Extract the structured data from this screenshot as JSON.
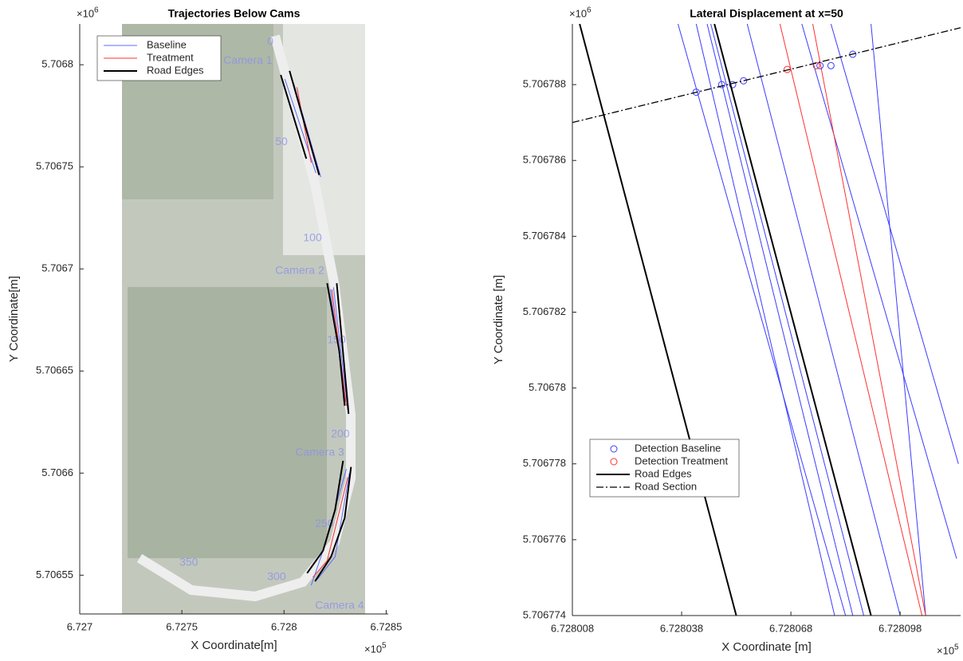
{
  "chart_data": [
    {
      "type": "line",
      "title": "Trajectories Below Cams",
      "x_label": "X Coordinate[m]",
      "y_label": "Y Coordinate[m]",
      "x_multiplier": "×10",
      "x_exponent": "5",
      "y_multiplier": "×10",
      "y_exponent": "6",
      "xlim": [
        6.727,
        6.72851
      ],
      "ylim": [
        5.706531,
        5.70682
      ],
      "xticks": [
        6.727,
        6.7275,
        6.728,
        6.7285
      ],
      "yticks": [
        5.70655,
        5.7066,
        5.70665,
        5.7067,
        5.70675,
        5.7068
      ],
      "legend": "upper left",
      "series": [
        {
          "name": "Baseline",
          "color": "#5a6cff",
          "linewidth": 1,
          "lines": [
            {
              "x": [
                6.728004,
                6.728156,
                null,
                6.728227,
                6.728301,
                null,
                6.728305,
                6.728191,
                6.728133
              ],
              "y": [
                5.706793,
                5.706747,
                null,
                5.70669,
                5.706635,
                null,
                5.706602,
                5.706562,
                5.706545
              ]
            },
            {
              "x": [
                6.728047,
                6.72818,
                null,
                6.728242,
                6.728312,
                null,
                6.72832,
                6.72825,
                6.728164
              ],
              "y": [
                5.706791,
                5.706745,
                null,
                5.706691,
                5.706631,
                null,
                5.7066,
                5.706559,
                5.706548
              ]
            }
          ]
        },
        {
          "name": "Treatment",
          "color": "#ff3030",
          "linewidth": 1,
          "lines": [
            {
              "x": [
                6.728063,
                6.728133,
                null,
                6.728234,
                6.728305,
                null,
                6.728312,
                6.728211,
                6.728141
              ],
              "y": [
                5.706789,
                5.706752,
                null,
                5.70669,
                5.706633,
                null,
                5.706598,
                5.706557,
                5.706549
              ]
            }
          ]
        },
        {
          "name": "Road Edges",
          "color": "#000000",
          "linewidth": 2,
          "lines": [
            {
              "x": [
                6.727984,
                6.728109,
                null,
                6.728211,
                6.72827,
                6.728297,
                null,
                6.728289,
                6.72825,
                6.728191,
                6.728113
              ],
              "y": [
                5.706795,
                5.706754,
                null,
                5.706693,
                5.70666,
                5.706633,
                null,
                5.706606,
                5.706582,
                5.706562,
                5.706551
              ]
            },
            {
              "x": [
                6.728027,
                6.728172,
                null,
                6.728258,
                6.728316,
                null,
                6.728328,
                6.728297,
                6.72823,
                6.728152
              ],
              "y": [
                5.706797,
                5.706746,
                null,
                5.706693,
                5.706629,
                null,
                5.706603,
                5.706578,
                5.706559,
                5.706547
              ]
            }
          ]
        }
      ],
      "annotations": [
        {
          "text": "Camera 1",
          "x": 6.727703,
          "y": 5.706802
        },
        {
          "text": "0",
          "x": 6.727918,
          "y": 5.706811
        },
        {
          "text": "50",
          "x": 6.727957,
          "y": 5.706762
        },
        {
          "text": "100",
          "x": 6.728094,
          "y": 5.706715
        },
        {
          "text": "Camera 2",
          "x": 6.727957,
          "y": 5.706699
        },
        {
          "text": "150",
          "x": 6.728211,
          "y": 5.706665
        },
        {
          "text": "200",
          "x": 6.72823,
          "y": 5.706619
        },
        {
          "text": "Camera 3",
          "x": 6.728055,
          "y": 5.70661
        },
        {
          "text": "250",
          "x": 6.728152,
          "y": 5.706575
        },
        {
          "text": "Camera 4",
          "x": 6.728152,
          "y": 5.706535
        },
        {
          "text": "300",
          "x": 6.727918,
          "y": 5.706549
        },
        {
          "text": "350",
          "x": 6.727488,
          "y": 5.706556
        }
      ]
    },
    {
      "type": "line",
      "title": "Lateral Displacement at x=50",
      "x_label": "X Coordinate [m]",
      "y_label": "Y Coordinate [m]",
      "x_multiplier": "×10",
      "x_exponent": "5",
      "y_multiplier": "×10",
      "y_exponent": "6",
      "xlim": [
        6.728008,
        6.7281146
      ],
      "ylim": [
        5.706774,
        5.7067896
      ],
      "xticks": [
        6.728008,
        6.728038,
        6.728068,
        6.728098
      ],
      "yticks": [
        5.706774,
        5.706776,
        5.706778,
        5.70678,
        5.706782,
        5.706784,
        5.706786,
        5.706788
      ],
      "legend": "lower left",
      "series": [
        {
          "name": "Detection Baseline",
          "color": "#3b3bff",
          "marker": "o",
          "x": [
            6.728042,
            6.728049,
            6.728052,
            6.728055,
            6.728076,
            6.728079,
            6.728085
          ],
          "y": [
            5.7067878,
            5.706788,
            5.706788,
            5.7067881,
            5.7067885,
            5.7067885,
            5.7067888
          ]
        },
        {
          "name": "Detection Treatment",
          "color": "#ff3030",
          "marker": "o",
          "x": [
            6.728067,
            6.728075
          ],
          "y": [
            5.7067884,
            5.7067885
          ]
        },
        {
          "name": "Road Edges",
          "color": "#000000",
          "linewidth": 2,
          "lines": [
            {
              "x": [
                6.72801,
                6.728053
              ],
              "y": [
                5.7067896,
                5.706774
              ]
            },
            {
              "x": [
                6.728047,
                6.72809
              ],
              "y": [
                5.7067896,
                5.706774
              ]
            }
          ]
        },
        {
          "name": "Road Section",
          "color": "#000000",
          "linewidth": 1.3,
          "style": "dash-dot",
          "lines": [
            {
              "x": [
                6.728008,
                6.7281146
              ],
              "y": [
                5.706787,
                5.7067895
              ]
            }
          ]
        }
      ],
      "trajectories": [
        {
          "color": "#3b3bff",
          "x": [
            6.728037,
            6.728083
          ],
          "y": [
            5.7067896,
            5.706774
          ]
        },
        {
          "color": "#3b3bff",
          "x": [
            6.728042,
            6.72808
          ],
          "y": [
            5.7067896,
            5.706774
          ]
        },
        {
          "color": "#3b3bff",
          "x": [
            6.728045,
            6.728085
          ],
          "y": [
            5.7067896,
            5.706774
          ]
        },
        {
          "color": "#3b3bff",
          "x": [
            6.728046,
            6.728088
          ],
          "y": [
            5.7067896,
            5.706774
          ]
        },
        {
          "color": "#3b3bff",
          "x": [
            6.728056,
            6.728098
          ],
          "y": [
            5.7067896,
            5.706774
          ]
        },
        {
          "color": "#3b3bff",
          "x": [
            6.728071,
            6.7281135
          ],
          "y": [
            5.7067896,
            5.7067755
          ]
        },
        {
          "color": "#3b3bff",
          "x": [
            6.728079,
            6.728114
          ],
          "y": [
            5.7067896,
            5.706778
          ]
        },
        {
          "color": "#3b3bff",
          "x": [
            6.72809,
            6.728105
          ],
          "y": [
            5.7067896,
            5.706774
          ]
        },
        {
          "color": "#ff3030",
          "x": [
            6.728065,
            6.728104
          ],
          "y": [
            5.7067896,
            5.706774
          ]
        },
        {
          "color": "#ff3030",
          "x": [
            6.728074,
            6.728105
          ],
          "y": [
            5.7067896,
            5.706774
          ]
        }
      ]
    }
  ]
}
